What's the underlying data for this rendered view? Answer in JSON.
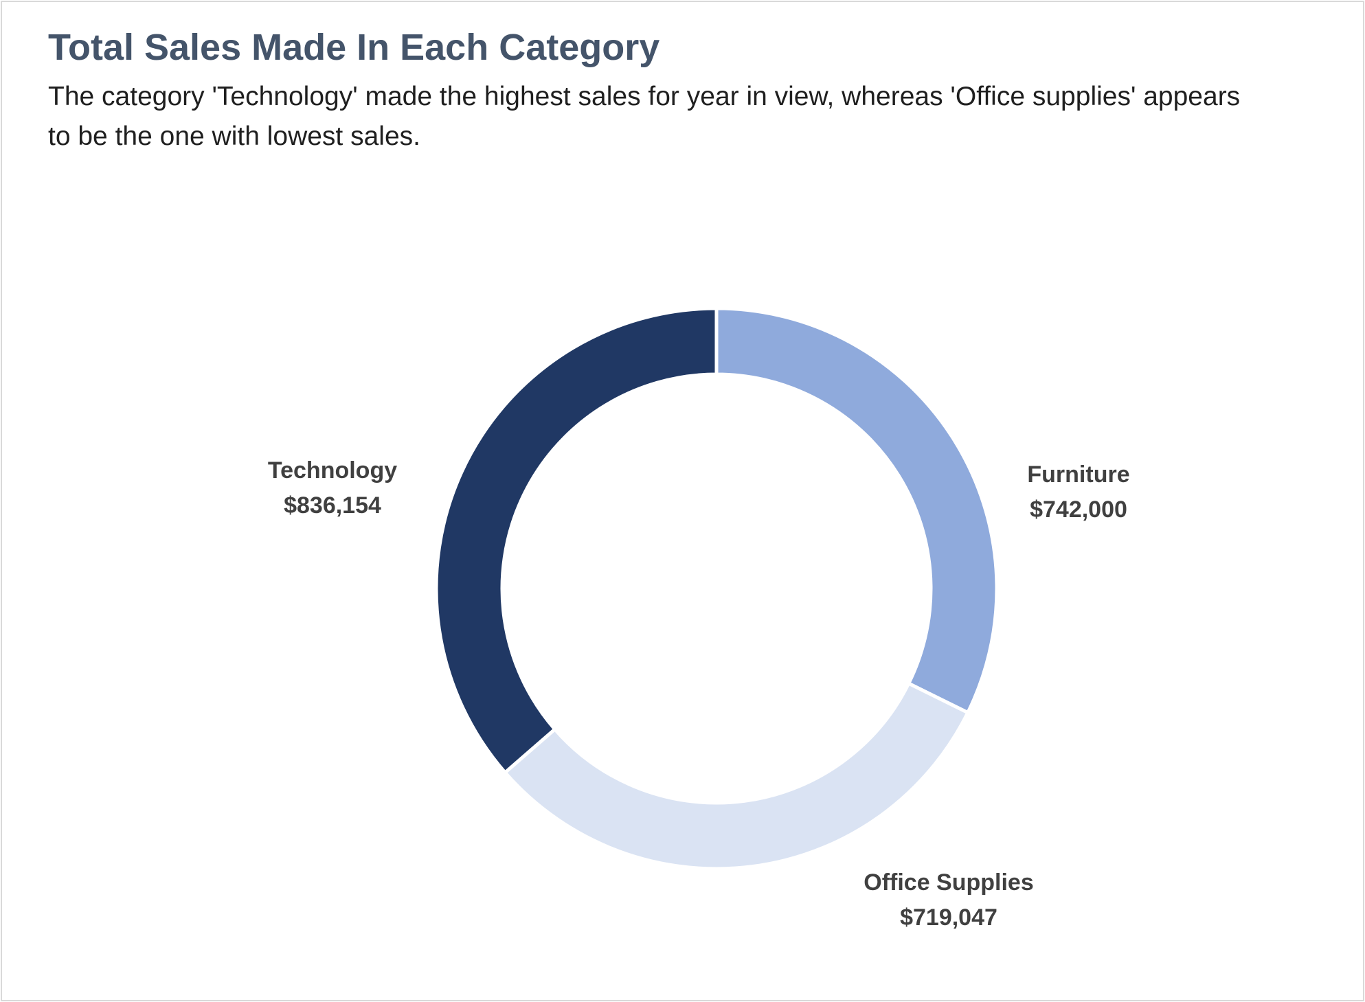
{
  "chart_data": {
    "type": "pie",
    "variant": "donut",
    "title": "Total Sales Made In Each Category",
    "subtitle": "The category 'Technology' made the highest sales for year in view, whereas 'Office supplies' appears to be the one with lowest sales.",
    "slices": [
      {
        "label": "Furniture",
        "value": 742000,
        "value_label": "$742,000",
        "color": "#8faadc"
      },
      {
        "label": "Office Supplies",
        "value": 719047,
        "value_label": "$719,047",
        "color": "#dae3f3"
      },
      {
        "label": "Technology",
        "value": 836154,
        "value_label": "$836,154",
        "color": "#203864"
      }
    ],
    "legend": "none",
    "data_labels": "outside"
  }
}
